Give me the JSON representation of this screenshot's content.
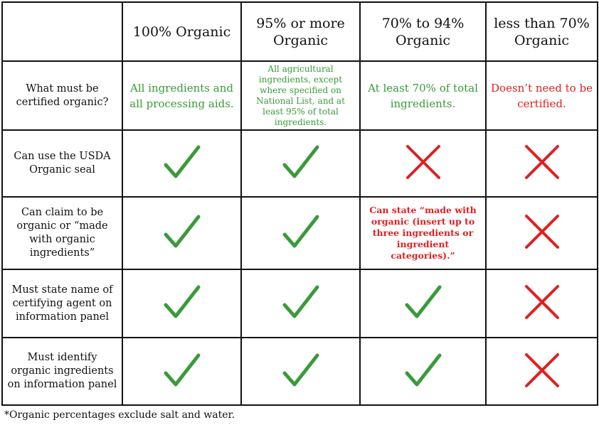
{
  "colors": {
    "green": "#3a9a3a",
    "red": "#e02020",
    "border": "#111111"
  },
  "header": {
    "corner": "",
    "columns": [
      "100% Organic",
      "95% or more Organic",
      "70% to 94% Organic",
      "less than 70% Organic"
    ]
  },
  "rows": [
    {
      "label": "What must be certified organic?",
      "cells": [
        {
          "type": "text",
          "color": "green",
          "text": "All ingredients and all processing aids."
        },
        {
          "type": "text",
          "color": "green",
          "text": "All agricultural ingredients, except where specified on National List, and at least 95% of total ingredients."
        },
        {
          "type": "text",
          "color": "green",
          "text": "At least 70% of total ingredients."
        },
        {
          "type": "text",
          "color": "red",
          "text": "Doesn’t need to be certified."
        }
      ]
    },
    {
      "label": "Can use the USDA Organic seal",
      "cells": [
        {
          "type": "mark",
          "icon": "check-icon"
        },
        {
          "type": "mark",
          "icon": "check-icon"
        },
        {
          "type": "mark",
          "icon": "x-icon"
        },
        {
          "type": "mark",
          "icon": "x-icon"
        }
      ]
    },
    {
      "label": "Can claim to be organic or “made with organic ingredients”",
      "cells": [
        {
          "type": "mark",
          "icon": "check-icon"
        },
        {
          "type": "mark",
          "icon": "check-icon"
        },
        {
          "type": "text",
          "color": "red",
          "text": "Can state “made with organic (insert up to three ingredients or ingredient categories).”"
        },
        {
          "type": "mark",
          "icon": "x-icon"
        }
      ]
    },
    {
      "label": "Must state name of certifying agent on information panel",
      "cells": [
        {
          "type": "mark",
          "icon": "check-icon"
        },
        {
          "type": "mark",
          "icon": "check-icon"
        },
        {
          "type": "mark",
          "icon": "check-icon"
        },
        {
          "type": "mark",
          "icon": "x-icon"
        }
      ]
    },
    {
      "label": "Must identify organic ingredients on information panel",
      "cells": [
        {
          "type": "mark",
          "icon": "check-icon"
        },
        {
          "type": "mark",
          "icon": "check-icon"
        },
        {
          "type": "mark",
          "icon": "check-icon"
        },
        {
          "type": "mark",
          "icon": "x-icon"
        }
      ]
    }
  ],
  "footnote": "*Organic percentages exclude salt and water."
}
